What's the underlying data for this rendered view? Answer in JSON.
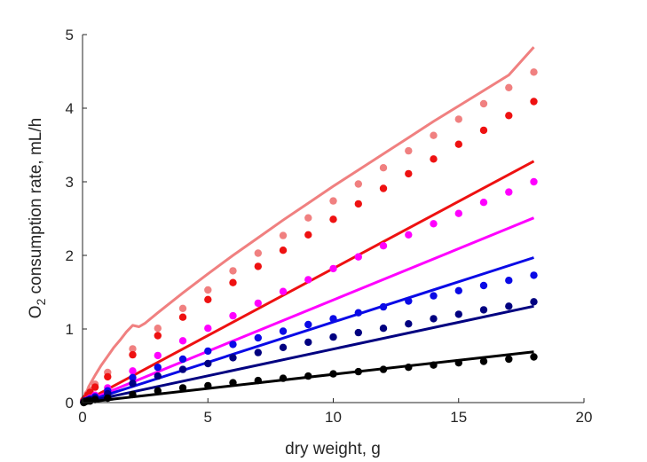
{
  "chart_data": {
    "type": "scatter",
    "xlabel": "dry weight, g",
    "ylabel_main": "O",
    "ylabel_sub": "2",
    "ylabel_rest": " consumption rate, mL/h",
    "xlim": [
      0,
      20
    ],
    "ylim": [
      0,
      5
    ],
    "xticks": [
      0,
      5,
      10,
      15,
      20
    ],
    "yticks": [
      0,
      1,
      2,
      3,
      4,
      5
    ],
    "grid": false,
    "x_points": [
      0.05,
      0.1,
      0.2,
      0.3,
      0.5,
      1,
      2,
      3,
      4,
      5,
      6,
      7,
      8,
      9,
      10,
      11,
      12,
      13,
      14,
      15,
      16,
      17,
      18
    ],
    "series": [
      {
        "color": "#f08080",
        "points": [
          0.03,
          0.06,
          0.12,
          0.17,
          0.25,
          0.41,
          0.73,
          1.01,
          1.28,
          1.53,
          1.79,
          2.03,
          2.27,
          2.51,
          2.74,
          2.97,
          3.19,
          3.42,
          3.63,
          3.85,
          4.06,
          4.28,
          4.49
        ],
        "line_x": [
          0,
          0.25,
          0.5,
          0.75,
          1,
          1.25,
          1.5,
          1.75,
          2,
          2.25,
          2.5,
          3,
          4,
          5,
          6,
          7,
          8,
          9,
          10,
          11,
          12,
          13,
          14,
          15,
          16,
          17,
          18
        ],
        "line_y": [
          0,
          0.22,
          0.37,
          0.51,
          0.63,
          0.75,
          0.85,
          0.96,
          1.05,
          1.03,
          1.08,
          1.22,
          1.49,
          1.75,
          2.0,
          2.24,
          2.48,
          2.71,
          2.94,
          3.16,
          3.38,
          3.6,
          3.82,
          4.03,
          4.24,
          4.45,
          4.83
        ]
      },
      {
        "color": "#ee1111",
        "points": [
          0.03,
          0.05,
          0.1,
          0.14,
          0.21,
          0.35,
          0.65,
          0.91,
          1.16,
          1.4,
          1.63,
          1.85,
          2.07,
          2.28,
          2.49,
          2.7,
          2.91,
          3.11,
          3.31,
          3.51,
          3.7,
          3.9,
          4.09
        ],
        "line_x": [
          0,
          18
        ],
        "line_y": [
          0,
          3.28
        ]
      },
      {
        "color": "#ff00ff",
        "points": [
          0.01,
          0.02,
          0.04,
          0.06,
          0.1,
          0.2,
          0.43,
          0.64,
          0.84,
          1.01,
          1.18,
          1.35,
          1.51,
          1.67,
          1.82,
          1.98,
          2.13,
          2.28,
          2.43,
          2.57,
          2.72,
          2.86,
          3.0
        ],
        "line_x": [
          0,
          18
        ],
        "line_y": [
          0,
          2.51
        ]
      },
      {
        "color": "#0a0ae6",
        "points": [
          0.01,
          0.02,
          0.03,
          0.05,
          0.08,
          0.16,
          0.34,
          0.48,
          0.59,
          0.7,
          0.79,
          0.88,
          0.97,
          1.06,
          1.14,
          1.22,
          1.3,
          1.38,
          1.45,
          1.52,
          1.59,
          1.66,
          1.73
        ],
        "line_x": [
          0,
          18
        ],
        "line_y": [
          0,
          1.97
        ]
      },
      {
        "color": "#000080",
        "points": [
          0.01,
          0.02,
          0.03,
          0.04,
          0.06,
          0.12,
          0.26,
          0.36,
          0.45,
          0.53,
          0.61,
          0.68,
          0.75,
          0.82,
          0.89,
          0.95,
          1.01,
          1.07,
          1.14,
          1.2,
          1.26,
          1.31,
          1.37
        ],
        "line_x": [
          0,
          18
        ],
        "line_y": [
          0,
          1.31
        ]
      },
      {
        "color": "#000000",
        "points": [
          0.0,
          0.01,
          0.02,
          0.02,
          0.04,
          0.06,
          0.11,
          0.16,
          0.2,
          0.23,
          0.27,
          0.3,
          0.33,
          0.36,
          0.39,
          0.42,
          0.45,
          0.48,
          0.51,
          0.54,
          0.56,
          0.59,
          0.62
        ],
        "line_x": [
          0,
          18
        ],
        "line_y": [
          0,
          0.69
        ]
      }
    ]
  }
}
